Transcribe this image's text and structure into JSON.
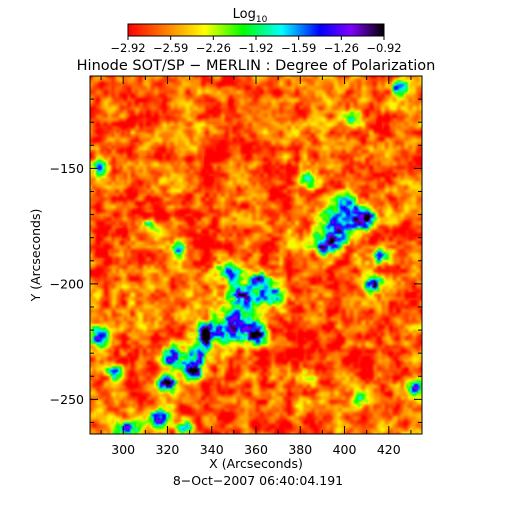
{
  "colorbar": {
    "label_main": "Log",
    "label_sub": "10",
    "ticks": [
      "−2.92",
      "−2.59",
      "−2.26",
      "−1.92",
      "−1.59",
      "−1.26",
      "−0.92"
    ],
    "range": [
      -2.92,
      -0.92
    ],
    "colors": [
      "#ff0000",
      "#ff8000",
      "#ffff00",
      "#00ff00",
      "#00ffff",
      "#0000ff",
      "#8000ff",
      "#000000"
    ]
  },
  "chart_data": {
    "type": "heatmap",
    "title": "Hinode SOT/SP − MERLIN : Degree of Polarization",
    "xlabel": "X (Arcseconds)",
    "ylabel": "Y (Arcseconds)",
    "footer": "8−Oct−2007 06:40:04.191",
    "xlim": [
      285,
      435
    ],
    "ylim": [
      -265,
      -110
    ],
    "xticks": [
      300,
      320,
      340,
      360,
      380,
      400,
      420
    ],
    "xtick_labels": [
      "300",
      "320",
      "340",
      "360",
      "380",
      "400",
      "420"
    ],
    "yticks": [
      -150,
      -200,
      -250
    ],
    "ytick_labels": [
      "−150",
      "−200",
      "−250"
    ],
    "background_level": -2.7,
    "features": [
      {
        "x": 355,
        "y": -205,
        "sx": 5,
        "sy": 4,
        "amp": 1.4
      },
      {
        "x": 350,
        "y": -218,
        "sx": 6,
        "sy": 5,
        "amp": 1.5
      },
      {
        "x": 338,
        "y": -222,
        "sx": 3,
        "sy": 3,
        "amp": 1.9
      },
      {
        "x": 360,
        "y": -222,
        "sx": 3,
        "sy": 3,
        "amp": 1.7
      },
      {
        "x": 332,
        "y": -232,
        "sx": 5,
        "sy": 4,
        "amp": 1.4
      },
      {
        "x": 322,
        "y": -232,
        "sx": 3,
        "sy": 3,
        "amp": 1.6
      },
      {
        "x": 320,
        "y": -243,
        "sx": 3,
        "sy": 2.5,
        "amp": 1.7
      },
      {
        "x": 332,
        "y": -238,
        "sx": 2.5,
        "sy": 2.5,
        "amp": 1.6
      },
      {
        "x": 368,
        "y": -205,
        "sx": 4,
        "sy": 3,
        "amp": 1.4
      },
      {
        "x": 347,
        "y": -195,
        "sx": 4,
        "sy": 3,
        "amp": 1.2
      },
      {
        "x": 362,
        "y": -198,
        "sx": 3,
        "sy": 2.5,
        "amp": 1.3
      },
      {
        "x": 398,
        "y": -175,
        "sx": 6,
        "sy": 5,
        "amp": 1.3
      },
      {
        "x": 409,
        "y": -172,
        "sx": 3,
        "sy": 3,
        "amp": 1.8
      },
      {
        "x": 392,
        "y": -183,
        "sx": 4,
        "sy": 3,
        "amp": 1.4
      },
      {
        "x": 402,
        "y": -165,
        "sx": 4,
        "sy": 3,
        "amp": 1.1
      },
      {
        "x": 417,
        "y": -188,
        "sx": 3,
        "sy": 2.5,
        "amp": 1.2
      },
      {
        "x": 413,
        "y": -200,
        "sx": 2.5,
        "sy": 2.5,
        "amp": 1.4
      },
      {
        "x": 384,
        "y": -155,
        "sx": 3,
        "sy": 2.5,
        "amp": 1.0
      },
      {
        "x": 425,
        "y": -115,
        "sx": 3,
        "sy": 2.5,
        "amp": 1.2
      },
      {
        "x": 404,
        "y": -128,
        "sx": 2.5,
        "sy": 2,
        "amp": 1.1
      },
      {
        "x": 289,
        "y": -223,
        "sx": 3,
        "sy": 3,
        "amp": 1.4
      },
      {
        "x": 296,
        "y": -238,
        "sx": 2.5,
        "sy": 2.5,
        "amp": 1.1
      },
      {
        "x": 290,
        "y": -150,
        "sx": 2.5,
        "sy": 2.5,
        "amp": 1.0
      },
      {
        "x": 316,
        "y": -258,
        "sx": 4,
        "sy": 3,
        "amp": 1.2
      },
      {
        "x": 302,
        "y": -263,
        "sx": 4,
        "sy": 2.5,
        "amp": 1.1
      },
      {
        "x": 328,
        "y": -262,
        "sx": 3,
        "sy": 2,
        "amp": 1.0
      },
      {
        "x": 432,
        "y": -245,
        "sx": 3,
        "sy": 3,
        "amp": 1.2
      },
      {
        "x": 408,
        "y": -250,
        "sx": 2.5,
        "sy": 2.5,
        "amp": 0.9
      },
      {
        "x": 382,
        "y": -240,
        "sx": 2.5,
        "sy": 2.5,
        "amp": 0.8
      },
      {
        "x": 325,
        "y": -185,
        "sx": 2.5,
        "sy": 2.5,
        "amp": 0.9
      },
      {
        "x": 312,
        "y": -175,
        "sx": 2.5,
        "sy": 2,
        "amp": 0.8
      }
    ]
  }
}
